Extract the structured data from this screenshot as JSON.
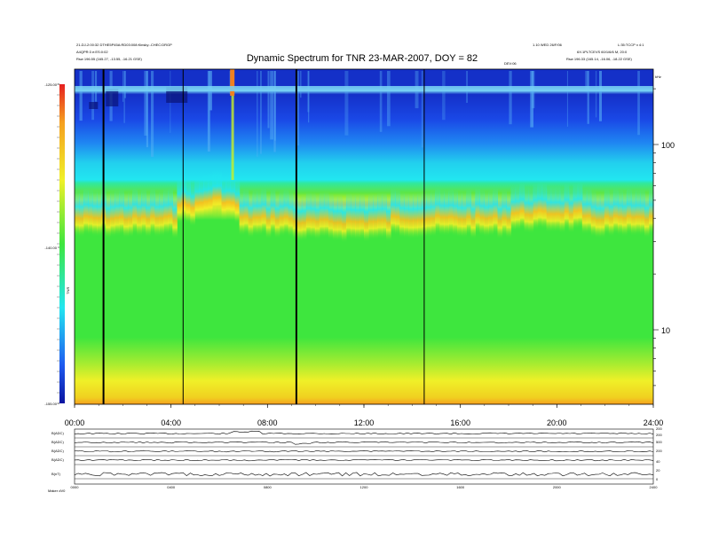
{
  "chart_data": {
    "type": "heatmap",
    "title": "Dynamic Spectrum for TNR 23-MAR-2007, DOY = 82",
    "header": {
      "left_line1": "21-DJ-2:00:32 DTHE5P45A:RD03:008:Kinsky:-CHEC:DRGP",
      "left_line2": "A4QPR:3 e:ES:0:02",
      "left_line3": "Rsw   196.55 (165.27, -13.55, -16.21 GSE)",
      "right_line1": "1.10 WED 26/F/06",
      "right_line2": "L:35:TCCP x 4:1",
      "right_line3": "6X:1PLTCEVS 60/1/6/6 M, 20:0",
      "right_line4": "Rsw   196.33 (165.14, -16.06, -18.22 GSE)",
      "right_small": "DEV:06"
    },
    "x": {
      "ticks": [
        "00:00",
        "04:00",
        "08:00",
        "12:00",
        "16:00",
        "20:00",
        "24:00"
      ],
      "range_hours": [
        0,
        24
      ]
    },
    "y_right": {
      "ticks": [
        "100",
        "10"
      ],
      "unit": "kHz",
      "scale": "log"
    },
    "colorbar": {
      "ticks": [
        "-125.00",
        "-140.00",
        "-155.00"
      ],
      "label": "TNR",
      "range": [
        -155,
        -125
      ]
    },
    "intensity_profile": {
      "description_levels": [
        -130,
        -134,
        -137,
        -140,
        -145
      ],
      "band_boundaries_hours": [
        0,
        1.2,
        4.5,
        6.5,
        9.2,
        14.5,
        18,
        24
      ]
    },
    "vertical_lines_hours": [
      1.2,
      4.5,
      9.2,
      14.5
    ],
    "bottom_panel": {
      "traces": [
        "B(ADC)",
        "B(ADC)",
        "B(ADC)",
        "B(ADC)",
        "B(nT)"
      ],
      "left_footer": "Maker    dV0",
      "time_labels": [
        "0000",
        "0400",
        "0800",
        "1200",
        "1600",
        "2000",
        "2400"
      ],
      "right_ticks": [
        "200",
        "200",
        "500",
        "200",
        "40",
        "20",
        "0"
      ]
    }
  },
  "colors": {
    "dark_blue": "#1430c8",
    "blue": "#1e5af0",
    "cyan": "#22e6f0",
    "green": "#3ee63e",
    "yellow": "#f0f028",
    "orange": "#f5a020",
    "red": "#e62020"
  }
}
